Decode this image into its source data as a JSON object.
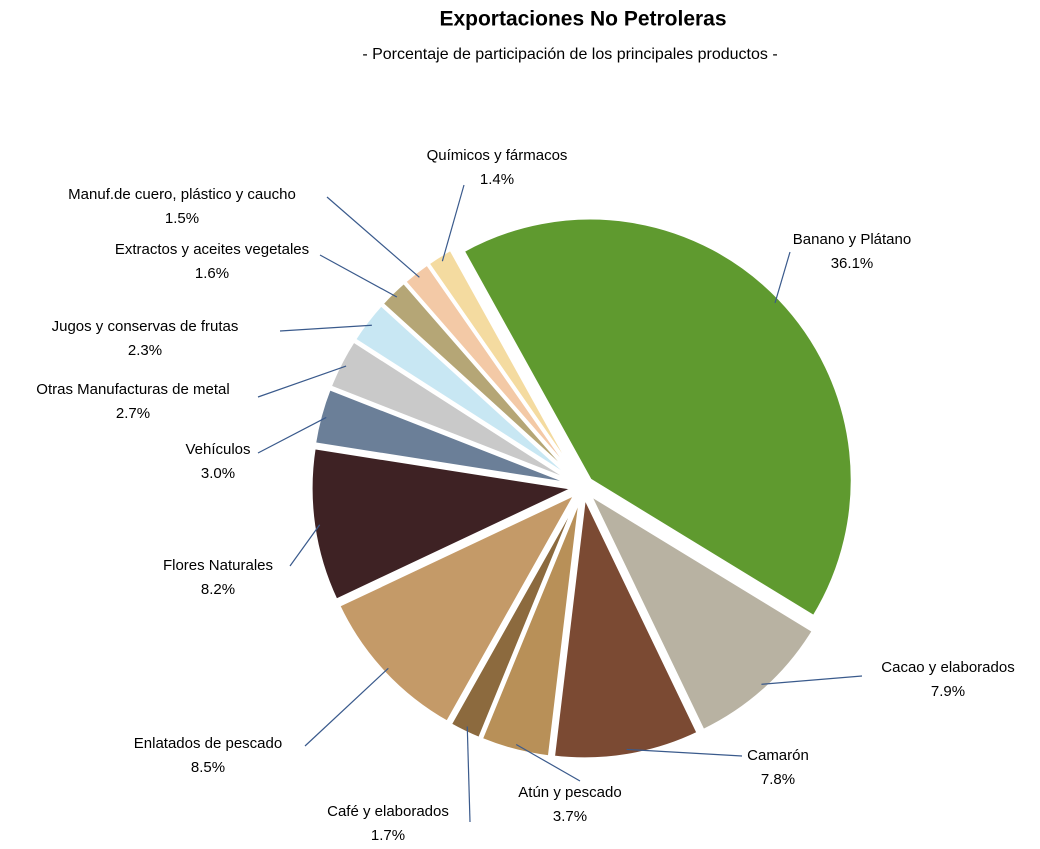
{
  "chart_data": {
    "type": "pie",
    "title": "Exportaciones No Petroleras",
    "subtitle": "- Porcentaje de participación de los principales productos -",
    "categories": [
      "Banano y Plátano",
      "Cacao y elaborados",
      "Camarón",
      "Atún y pescado",
      "Café y elaborados",
      "Enlatados de pescado",
      "Flores Naturales",
      "Vehículos",
      "Otras Manufacturas de metal",
      "Jugos y conservas de frutas",
      "Extractos y aceites vegetales",
      "Manuf.de cuero, plástico y caucho",
      "Químicos y fármacos"
    ],
    "values": [
      36.1,
      7.9,
      7.8,
      3.7,
      1.7,
      8.5,
      8.2,
      3.0,
      2.7,
      2.3,
      1.6,
      1.5,
      1.4
    ],
    "value_labels": [
      "36.1%",
      "7.9%",
      "7.8%",
      "3.7%",
      "1.7%",
      "8.5%",
      "8.2%",
      "3.0%",
      "2.7%",
      "2.3%",
      "1.6%",
      "1.5%",
      "1.4%"
    ],
    "colors": [
      "#5f9a2f",
      "#b8b2a2",
      "#7b4a33",
      "#b89058",
      "#8c6a3e",
      "#c49a68",
      "#3e2224",
      "#6b7f98",
      "#c9c9c9",
      "#c8e7f3",
      "#b5a676",
      "#f3c9a6",
      "#f4dba0"
    ]
  }
}
